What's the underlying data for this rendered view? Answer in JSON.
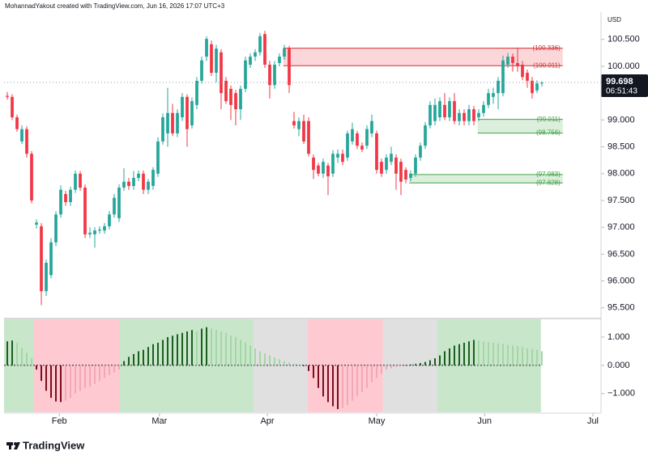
{
  "header": "MohannadYakout created with TradingView.com, Jun 16, 2026 17:07 UTC+3",
  "footer": "TradingView",
  "chart_data": {
    "type": "candlestick",
    "currency": "USD",
    "countdown": "06:51:43",
    "up_color": "#26a69a",
    "down_color": "#f23645",
    "xlim": [
      -0.67,
      122.17
    ],
    "xticks": [
      {
        "value": 10.7,
        "label": "Feb"
      },
      {
        "value": 31.3,
        "label": "Mar"
      },
      {
        "value": 53.5,
        "label": "Apr"
      },
      {
        "value": 76,
        "label": "May"
      },
      {
        "value": 98.2,
        "label": "Jun"
      },
      {
        "value": 120.5,
        "label": "Jul"
      }
    ],
    "ylim": [
      95.316,
      101.009
    ],
    "yticks": [
      {
        "value": 95.5,
        "label": "95.500"
      },
      {
        "value": 96,
        "label": "96.000"
      },
      {
        "value": 96.5,
        "label": "96.500"
      },
      {
        "value": 97,
        "label": "97.000"
      },
      {
        "value": 97.5,
        "label": "97.500"
      },
      {
        "value": 98,
        "label": "98.000"
      },
      {
        "value": 98.5,
        "label": "98.500"
      },
      {
        "value": 99,
        "label": "99.000"
      },
      {
        "value": 100,
        "label": "100.000"
      },
      {
        "value": 100.5,
        "label": "100.500"
      }
    ],
    "candles": [
      [
        99.45,
        99.52,
        99.38,
        99.43
      ],
      [
        99.43,
        99.48,
        99.0,
        99.05
      ],
      [
        99.05,
        99.1,
        98.78,
        98.83
      ],
      [
        98.6,
        98.9,
        98.55,
        98.83
      ],
      [
        98.83,
        98.88,
        98.3,
        98.37
      ],
      [
        98.37,
        98.42,
        97.45,
        97.5
      ],
      [
        97.05,
        97.15,
        96.98,
        97.09
      ],
      [
        97.02,
        97.08,
        95.55,
        95.81
      ],
      [
        95.81,
        96.4,
        95.72,
        96.34
      ],
      [
        96.11,
        96.8,
        96.05,
        96.72
      ],
      [
        96.72,
        97.3,
        96.65,
        97.24
      ],
      [
        97.24,
        97.78,
        97.18,
        97.7
      ],
      [
        97.62,
        97.68,
        97.4,
        97.47
      ],
      [
        97.47,
        97.76,
        97.4,
        97.7
      ],
      [
        97.7,
        98.06,
        97.64,
        98.0
      ],
      [
        98.0,
        98.05,
        97.68,
        97.74
      ],
      [
        97.74,
        97.8,
        96.8,
        96.87
      ],
      [
        96.87,
        97.0,
        96.8,
        96.9
      ],
      [
        96.87,
        97.0,
        96.62,
        96.94
      ],
      [
        96.94,
        97.02,
        96.88,
        96.96
      ],
      [
        96.94,
        97.08,
        96.88,
        97.02
      ],
      [
        97.02,
        97.3,
        96.96,
        97.24
      ],
      [
        97.24,
        97.62,
        97.18,
        97.55
      ],
      [
        97.17,
        97.8,
        97.1,
        97.74
      ],
      [
        97.74,
        98.1,
        97.68,
        97.85
      ],
      [
        97.85,
        97.92,
        97.7,
        97.77
      ],
      [
        97.77,
        98.05,
        97.7,
        97.92
      ],
      [
        97.92,
        98.06,
        97.86,
        98.0
      ],
      [
        98.0,
        98.06,
        97.62,
        97.7
      ],
      [
        97.7,
        97.9,
        97.62,
        97.85
      ],
      [
        97.77,
        98.12,
        97.7,
        98.07
      ],
      [
        98.0,
        98.68,
        97.94,
        98.6
      ],
      [
        98.6,
        99.12,
        98.54,
        99.05
      ],
      [
        98.75,
        99.6,
        98.5,
        99.13
      ],
      [
        99.13,
        99.3,
        98.7,
        98.75
      ],
      [
        98.75,
        99.2,
        98.68,
        99.13
      ],
      [
        99.05,
        99.5,
        98.98,
        99.43
      ],
      [
        99.43,
        99.48,
        98.5,
        98.83
      ],
      [
        98.9,
        99.42,
        98.84,
        99.35
      ],
      [
        99.28,
        99.8,
        99.2,
        99.73
      ],
      [
        99.73,
        100.18,
        99.68,
        100.11
      ],
      [
        100.18,
        100.56,
        100.1,
        100.51
      ],
      [
        100.41,
        100.48,
        99.82,
        99.88
      ],
      [
        99.88,
        100.4,
        99.7,
        100.33
      ],
      [
        100.26,
        100.32,
        99.2,
        99.5
      ],
      [
        99.73,
        99.8,
        99.3,
        99.35
      ],
      [
        99.58,
        99.64,
        99.0,
        99.28
      ],
      [
        99.5,
        99.56,
        98.9,
        99.2
      ],
      [
        99.2,
        99.64,
        99.0,
        99.58
      ],
      [
        99.58,
        100.18,
        99.52,
        100.11
      ],
      [
        100.03,
        100.24,
        99.97,
        100.18
      ],
      [
        100.18,
        100.32,
        100.1,
        100.26
      ],
      [
        100.26,
        100.62,
        100.2,
        100.56
      ],
      [
        100.6,
        100.66,
        99.97,
        100.03
      ],
      [
        100.03,
        100.1,
        99.4,
        99.65
      ],
      [
        99.65,
        100.1,
        99.58,
        100.03
      ],
      [
        100.06,
        100.24,
        100.0,
        100.18
      ],
      [
        100.18,
        100.4,
        100.12,
        100.33
      ],
      [
        100.33,
        100.38,
        99.5,
        99.65
      ],
      [
        98.98,
        99.15,
        98.84,
        98.9
      ],
      [
        98.83,
        99.05,
        98.7,
        98.98
      ],
      [
        98.98,
        99.1,
        98.55,
        98.6
      ],
      [
        98.98,
        99.05,
        98.32,
        98.37
      ],
      [
        98.3,
        98.36,
        97.9,
        98.07
      ],
      [
        98.15,
        98.2,
        97.95,
        98.0
      ],
      [
        98.0,
        98.28,
        97.92,
        98.22
      ],
      [
        98.15,
        98.2,
        97.6,
        97.95
      ],
      [
        98.0,
        98.44,
        97.94,
        98.37
      ],
      [
        98.3,
        98.45,
        98.2,
        98.37
      ],
      [
        98.37,
        98.45,
        98.16,
        98.22
      ],
      [
        98.3,
        98.8,
        98.24,
        98.75
      ],
      [
        98.6,
        98.95,
        98.54,
        98.83
      ],
      [
        98.75,
        98.8,
        98.46,
        98.52
      ],
      [
        98.52,
        98.58,
        98.4,
        98.45
      ],
      [
        98.52,
        98.9,
        98.46,
        98.83
      ],
      [
        98.75,
        99.1,
        98.68,
        98.98
      ],
      [
        98.75,
        98.8,
        98.0,
        98.07
      ],
      [
        98.22,
        98.28,
        97.94,
        98.0
      ],
      [
        98.07,
        98.36,
        98.0,
        98.3
      ],
      [
        98.22,
        98.5,
        98.16,
        98.37
      ],
      [
        98.3,
        98.36,
        97.7,
        98.0
      ],
      [
        98.22,
        98.28,
        97.6,
        97.85
      ],
      [
        98.07,
        98.12,
        97.82,
        97.89
      ],
      [
        97.92,
        98.06,
        97.86,
        98.0
      ],
      [
        98.0,
        98.36,
        97.94,
        98.3
      ],
      [
        98.3,
        98.58,
        98.24,
        98.52
      ],
      [
        98.52,
        98.96,
        98.46,
        98.9
      ],
      [
        98.9,
        99.35,
        98.84,
        99.28
      ],
      [
        98.98,
        99.4,
        98.9,
        99.28
      ],
      [
        99.05,
        99.42,
        98.98,
        99.35
      ],
      [
        99.28,
        99.5,
        99.0,
        99.05
      ],
      [
        99.05,
        99.42,
        98.98,
        99.35
      ],
      [
        99.35,
        99.5,
        98.92,
        98.98
      ],
      [
        98.98,
        99.2,
        98.9,
        99.13
      ],
      [
        99.13,
        99.2,
        98.9,
        98.98
      ],
      [
        98.98,
        99.28,
        98.9,
        99.2
      ],
      [
        99.2,
        99.26,
        98.9,
        98.98
      ],
      [
        99.05,
        99.2,
        98.98,
        99.13
      ],
      [
        99.13,
        99.35,
        99.06,
        99.28
      ],
      [
        99.28,
        99.58,
        99.22,
        99.5
      ],
      [
        99.43,
        99.6,
        99.3,
        99.5
      ],
      [
        99.5,
        99.8,
        99.2,
        99.73
      ],
      [
        99.5,
        100.2,
        99.44,
        100.11
      ],
      [
        100.03,
        100.25,
        99.97,
        100.18
      ],
      [
        100.18,
        100.24,
        99.9,
        100.06
      ],
      [
        100.06,
        100.35,
        99.9,
        100.0
      ],
      [
        100.03,
        100.1,
        99.74,
        99.8
      ],
      [
        99.88,
        99.94,
        99.6,
        99.73
      ],
      [
        99.73,
        99.8,
        99.4,
        99.5
      ],
      [
        99.55,
        99.74,
        99.5,
        99.68
      ],
      [
        99.68,
        99.72,
        99.62,
        99.698
      ]
    ],
    "zones": [
      {
        "top": 100.336,
        "bottom": 100.011,
        "top_label": "(100.336)",
        "bottom_label": "(100.011)",
        "start": 56.8,
        "end": 114.3,
        "fill": "rgba(242,54,69,0.2)",
        "color": "#d32f2f"
      },
      {
        "top": 99.011,
        "bottom": 98.756,
        "top_label": "(99.011)",
        "bottom_label": "(98.756)",
        "start": 96.8,
        "end": 114.3,
        "fill": "rgba(76,175,80,0.2)",
        "color": "#43a047"
      },
      {
        "top": 97.983,
        "bottom": 97.828,
        "top_label": "(97.983)",
        "bottom_label": "(97.828)",
        "start": 82.7,
        "end": 114.3,
        "fill": "rgba(76,175,80,0.2)",
        "color": "#43a047"
      }
    ],
    "indicator": {
      "ylim": [
        -1.663,
        1.629
      ],
      "yticks": [
        {
          "value": 1,
          "label": "1.000"
        },
        {
          "value": 0,
          "label": "0.000"
        },
        {
          "value": -1,
          "label": "−1.000"
        }
      ],
      "colors": {
        "up_rising": "#1b5e20",
        "up_falling": "#a5d6a7",
        "down_falling": "#7b0d1e",
        "down_rising": "#f4a7b5"
      },
      "regions": [
        {
          "start": -0.67,
          "end": 5.5,
          "color": "#c8e6c9"
        },
        {
          "start": 5.5,
          "end": 23,
          "color": "#ffc9d1"
        },
        {
          "start": 23,
          "end": 50.7,
          "color": "#c8e6c9"
        },
        {
          "start": 50.7,
          "end": 61.8,
          "color": "#e0e0e0"
        },
        {
          "start": 61.8,
          "end": 77.3,
          "color": "#ffc9d1"
        },
        {
          "start": 77.3,
          "end": 88.5,
          "color": "#e0e0e0"
        },
        {
          "start": 88.5,
          "end": 109.8,
          "color": "#c8e6c9"
        }
      ],
      "values": [
        0.85,
        0.88,
        0.8,
        0.62,
        0.45,
        0.25,
        -0.15,
        -0.55,
        -0.9,
        -1.15,
        -1.28,
        -1.3,
        -1.25,
        -1.15,
        -1.0,
        -0.9,
        -0.8,
        -0.75,
        -0.65,
        -0.55,
        -0.45,
        -0.35,
        -0.25,
        -0.15,
        0.15,
        0.3,
        0.4,
        0.5,
        0.55,
        0.65,
        0.75,
        0.8,
        0.9,
        1.0,
        1.05,
        1.1,
        1.15,
        1.2,
        1.25,
        1.2,
        1.3,
        1.35,
        1.3,
        1.25,
        1.2,
        1.15,
        1.05,
        1.0,
        0.9,
        0.8,
        0.7,
        0.6,
        0.5,
        0.42,
        0.35,
        0.28,
        0.22,
        0.15,
        0.1,
        0.05,
        0.02,
        -0.03,
        -0.2,
        -0.45,
        -0.8,
        -1.1,
        -1.3,
        -1.45,
        -1.55,
        -1.5,
        -1.4,
        -1.25,
        -1.1,
        -0.95,
        -0.8,
        -0.6,
        -0.45,
        -0.3,
        -0.15,
        -0.1,
        -0.05,
        -0.03,
        0.0,
        0.03,
        0.05,
        0.08,
        0.12,
        0.18,
        0.25,
        0.35,
        0.5,
        0.6,
        0.7,
        0.75,
        0.8,
        0.85,
        0.9,
        0.88,
        0.85,
        0.82,
        0.8,
        0.78,
        0.75,
        0.72,
        0.7,
        0.68,
        0.65,
        0.6,
        0.58,
        0.55,
        0.5
      ]
    }
  }
}
